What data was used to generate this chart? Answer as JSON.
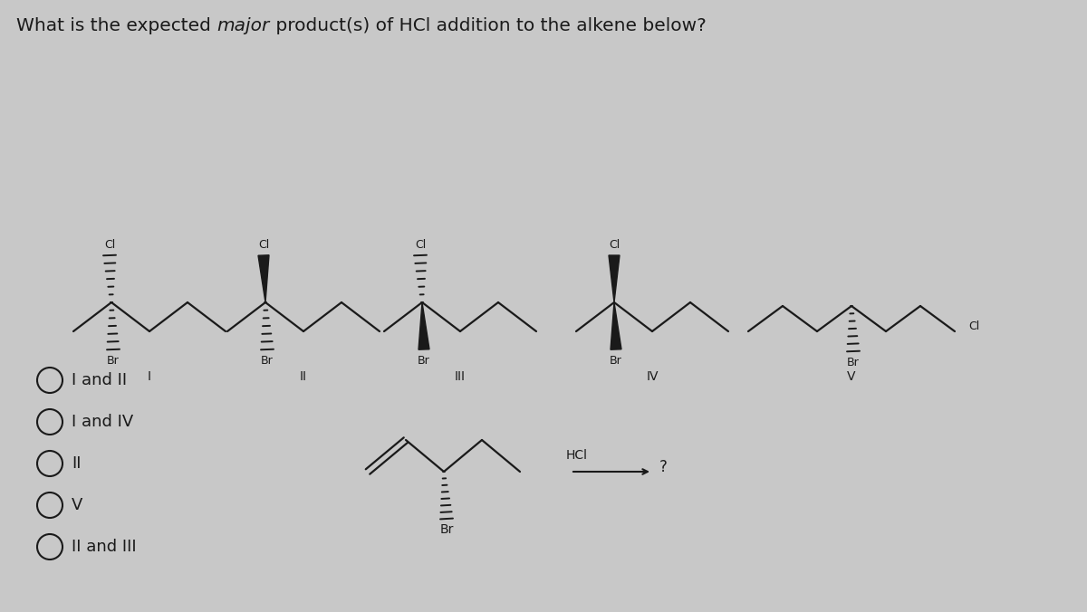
{
  "bg_color": "#c8c8c8",
  "text_color": "#1a1a1a",
  "answer_options": [
    "I and II",
    "I and IV",
    "II",
    "V",
    "II and III"
  ],
  "font_size_title": 14.5,
  "font_size_roman": 10,
  "font_size_atom": 9,
  "figsize": [
    12.0,
    6.76
  ],
  "dpi": 100
}
